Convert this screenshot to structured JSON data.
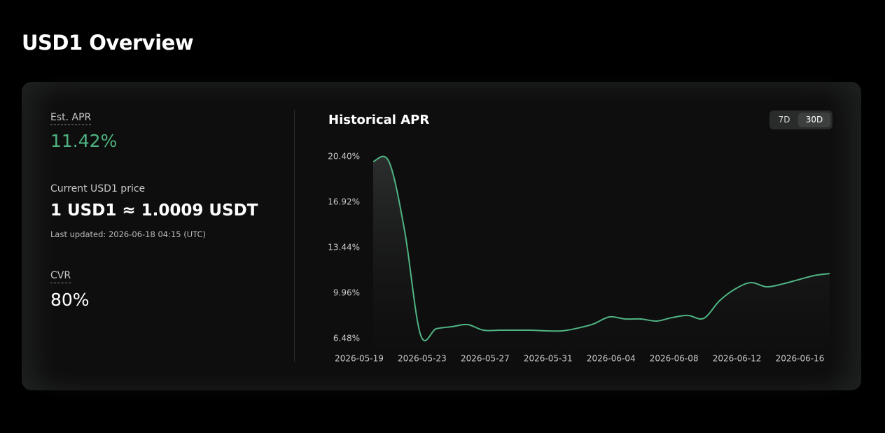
{
  "header": {
    "title": "USD1 Overview"
  },
  "stats": [
    {
      "label": "Est. APR",
      "value": "11.42%"
    },
    {
      "label": "Current USD1 price",
      "value": "1 USD1 ≈ 1.0009 USDT",
      "note": "Last updated: 2026-06-18 04:15 (UTC)"
    },
    {
      "label": "CVR",
      "value": "80%"
    }
  ],
  "toggle": [
    "7D",
    "30D"
  ],
  "chart_data": {
    "type": "line",
    "title": "Historical APR",
    "color": "#4fb482",
    "x": [
      "2026-05-19",
      "2026-05-20",
      "2026-05-21",
      "2026-05-22",
      "2026-05-23",
      "2026-05-24",
      "2026-05-25",
      "2026-05-26",
      "2026-05-27",
      "2026-05-28",
      "2026-05-29",
      "2026-05-30",
      "2026-05-31",
      "2026-06-01",
      "2026-06-02",
      "2026-06-03",
      "2026-06-04",
      "2026-06-05",
      "2026-06-06",
      "2026-06-07",
      "2026-06-08",
      "2026-06-09",
      "2026-06-10",
      "2026-06-11",
      "2026-06-12",
      "2026-06-13",
      "2026-06-14",
      "2026-06-15",
      "2026-06-16",
      "2026-06-17"
    ],
    "values": [
      20.03,
      20.03,
      14.72,
      6.8,
      7.23,
      7.39,
      7.55,
      7.12,
      7.12,
      7.12,
      7.12,
      7.07,
      7.07,
      7.28,
      7.6,
      8.14,
      7.98,
      7.98,
      7.82,
      8.09,
      8.25,
      8.03,
      9.37,
      10.28,
      10.76,
      10.44,
      10.66,
      10.98,
      11.3,
      11.46
    ],
    "ylim": [
      6.48,
      20.4
    ],
    "yticks": [
      {
        "value": 20.4,
        "label": "20.40%"
      },
      {
        "value": 16.92,
        "label": "16.92%"
      },
      {
        "value": 13.44,
        "label": "13.44%"
      },
      {
        "value": 9.96,
        "label": "9.96%"
      },
      {
        "value": 6.48,
        "label": "6.48%"
      }
    ],
    "xticks": [
      "2026-05-19",
      "2026-05-23",
      "2026-05-27",
      "2026-05-31",
      "2026-06-04",
      "2026-06-08",
      "2026-06-12",
      "2026-06-16"
    ]
  }
}
